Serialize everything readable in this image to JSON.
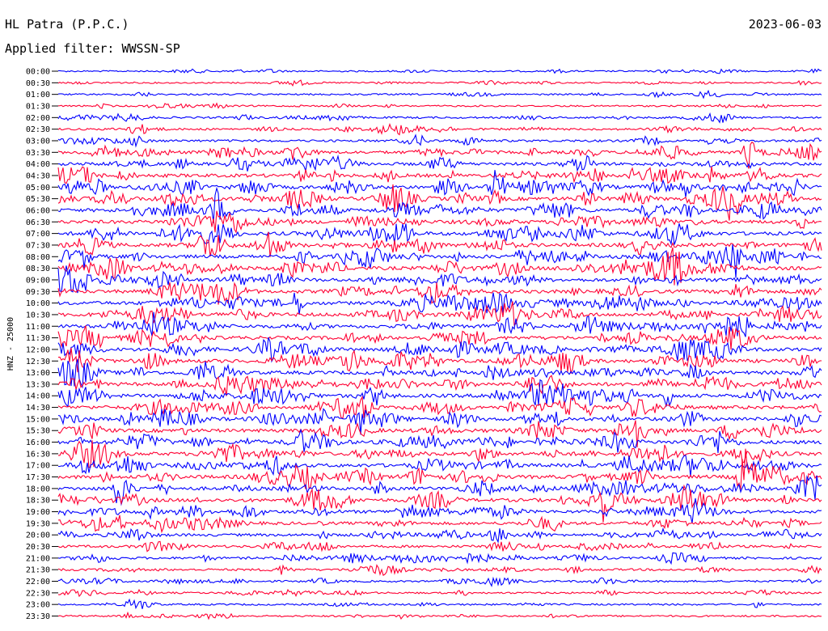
{
  "header": {
    "station": "HL Patra (P.P.C.)",
    "date": "2023-06-03",
    "filter": "Applied filter: WWSSN-SP"
  },
  "chart_data": {
    "type": "line",
    "ylabel": "HNZ - 25000",
    "trace_colors": [
      "#0000ff",
      "#ff0033"
    ],
    "rows": [
      "00:00",
      "00:30",
      "01:00",
      "01:30",
      "02:00",
      "02:30",
      "03:00",
      "03:30",
      "04:00",
      "04:30",
      "05:00",
      "05:30",
      "06:00",
      "06:30",
      "07:00",
      "07:30",
      "08:00",
      "08:30",
      "09:00",
      "09:30",
      "10:00",
      "10:30",
      "11:00",
      "11:30",
      "12:00",
      "12:30",
      "13:00",
      "13:30",
      "14:00",
      "14:30",
      "15:00",
      "15:30",
      "16:00",
      "16:30",
      "17:00",
      "17:30",
      "18:00",
      "18:30",
      "19:00",
      "19:30",
      "20:00",
      "20:30",
      "21:00",
      "21:30",
      "22:00",
      "22:30",
      "23:00",
      "23:30"
    ],
    "relative_amplitude": [
      0.25,
      0.25,
      0.3,
      0.3,
      0.4,
      0.45,
      0.55,
      0.8,
      0.85,
      0.95,
      1.0,
      1.0,
      1.0,
      1.0,
      1.0,
      1.0,
      1.0,
      1.0,
      1.0,
      1.0,
      1.0,
      1.0,
      1.0,
      1.0,
      1.0,
      1.0,
      1.0,
      1.0,
      1.0,
      1.0,
      1.0,
      1.0,
      1.0,
      1.0,
      1.0,
      1.0,
      0.95,
      0.95,
      0.85,
      0.8,
      0.7,
      0.6,
      0.55,
      0.5,
      0.4,
      0.35,
      0.35,
      0.35
    ],
    "grid": false,
    "legend": "none"
  }
}
